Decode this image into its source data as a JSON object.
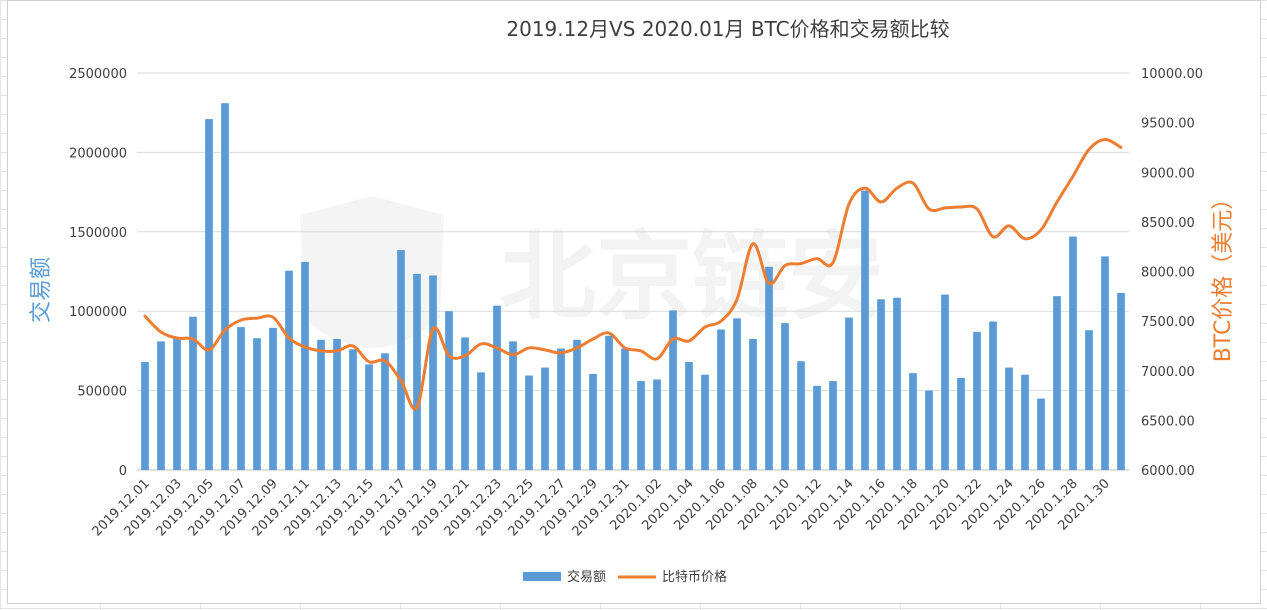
{
  "chart_data": {
    "type": "bar",
    "title": "2019.12月VS 2020.01月 BTC价格和交易额比较",
    "watermark": "北京链安",
    "categories": [
      "2019.12.01",
      "2019.12.02",
      "2019.12.03",
      "2019.12.04",
      "2019.12.05",
      "2019.12.06",
      "2019.12.07",
      "2019.12.08",
      "2019.12.09",
      "2019.12.10",
      "2019.12.11",
      "2019.12.12",
      "2019.12.13",
      "2019.12.14",
      "2019.12.15",
      "2019.12.16",
      "2019.12.17",
      "2019.12.18",
      "2019.12.19",
      "2019.12.20",
      "2019.12.21",
      "2019.12.22",
      "2019.12.23",
      "2019.12.24",
      "2019.12.25",
      "2019.12.26",
      "2019.12.27",
      "2019.12.28",
      "2019.12.29",
      "2019.12.30",
      "2019.12.31",
      "2020.1.01",
      "2020.1.02",
      "2020.1.03",
      "2020.1.04",
      "2020.1.05",
      "2020.1.06",
      "2020.1.07",
      "2020.1.08",
      "2020.1.09",
      "2020.1.10",
      "2020.1.11",
      "2020.1.12",
      "2020.1.13",
      "2020.1.14",
      "2020.1.15",
      "2020.1.16",
      "2020.1.17",
      "2020.1.18",
      "2020.1.19",
      "2020.1.20",
      "2020.1.21",
      "2020.1.22",
      "2020.1.23",
      "2020.1.24",
      "2020.1.25",
      "2020.1.26",
      "2020.1.27",
      "2020.1.28",
      "2020.1.29",
      "2020.1.30",
      "2020.1.31"
    ],
    "tick_labels": [
      "2019.12.01",
      "2019.12.03",
      "2019.12.05",
      "2019.12.07",
      "2019.12.09",
      "2019.12.11",
      "2019.12.13",
      "2019.12.15",
      "2019.12.17",
      "2019.12.19",
      "2019.12.21",
      "2019.12.23",
      "2019.12.25",
      "2019.12.27",
      "2019.12.29",
      "2019.12.31",
      "2020.1.02",
      "2020.1.04",
      "2020.1.06",
      "2020.1.08",
      "2020.1.10",
      "2020.1.12",
      "2020.1.14",
      "2020.1.16",
      "2020.1.18",
      "2020.1.20",
      "2020.1.22",
      "2020.1.24",
      "2020.1.26",
      "2020.1.28",
      "2020.1.30"
    ],
    "series": [
      {
        "name": "交易额",
        "type": "bar",
        "axis": "left",
        "color": "#5b9bd5",
        "values": [
          680000,
          810000,
          830000,
          965000,
          2210000,
          2310000,
          900000,
          830000,
          895000,
          1255000,
          1310000,
          820000,
          825000,
          760000,
          665000,
          735000,
          1385000,
          1235000,
          1225000,
          1000000,
          835000,
          615000,
          1035000,
          810000,
          595000,
          645000,
          765000,
          820000,
          605000,
          845000,
          765000,
          560000,
          570000,
          1005000,
          680000,
          600000,
          885000,
          955000,
          825000,
          1280000,
          925000,
          685000,
          530000,
          560000,
          960000,
          1760000,
          1075000,
          1085000,
          610000,
          500000,
          1105000,
          580000,
          870000,
          935000,
          645000,
          600000,
          450000,
          1095000,
          1470000,
          880000,
          1345000,
          1115000
        ]
      },
      {
        "name": "比特币价格",
        "type": "line",
        "axis": "right",
        "color": "#ed7d31",
        "values": [
          7550,
          7390,
          7330,
          7320,
          7210,
          7410,
          7510,
          7530,
          7540,
          7330,
          7240,
          7200,
          7200,
          7250,
          7090,
          7100,
          6900,
          6630,
          7420,
          7150,
          7150,
          7270,
          7230,
          7160,
          7230,
          7210,
          7180,
          7230,
          7320,
          7380,
          7230,
          7200,
          7120,
          7320,
          7300,
          7440,
          7500,
          7720,
          8280,
          7880,
          8060,
          8080,
          8130,
          8090,
          8680,
          8840,
          8700,
          8840,
          8890,
          8630,
          8640,
          8650,
          8630,
          8350,
          8460,
          8330,
          8420,
          8700,
          8960,
          9230,
          9330,
          9250
        ]
      }
    ],
    "y_left": {
      "label": "交易额",
      "min": 0,
      "max": 2500000,
      "step": 500000,
      "ticks": [
        "0",
        "500000",
        "1000000",
        "1500000",
        "2000000",
        "2500000"
      ]
    },
    "y_right": {
      "label": "BTC价格（美元）",
      "min": 6000,
      "max": 10000,
      "step": 500,
      "ticks": [
        "6000.00",
        "6500.00",
        "7000.00",
        "7500.00",
        "8000.00",
        "8500.00",
        "9000.00",
        "9500.00",
        "10000.00"
      ]
    },
    "grid": true,
    "legend": {
      "position": "bottom",
      "items": [
        "交易额",
        "比特币价格"
      ]
    }
  }
}
